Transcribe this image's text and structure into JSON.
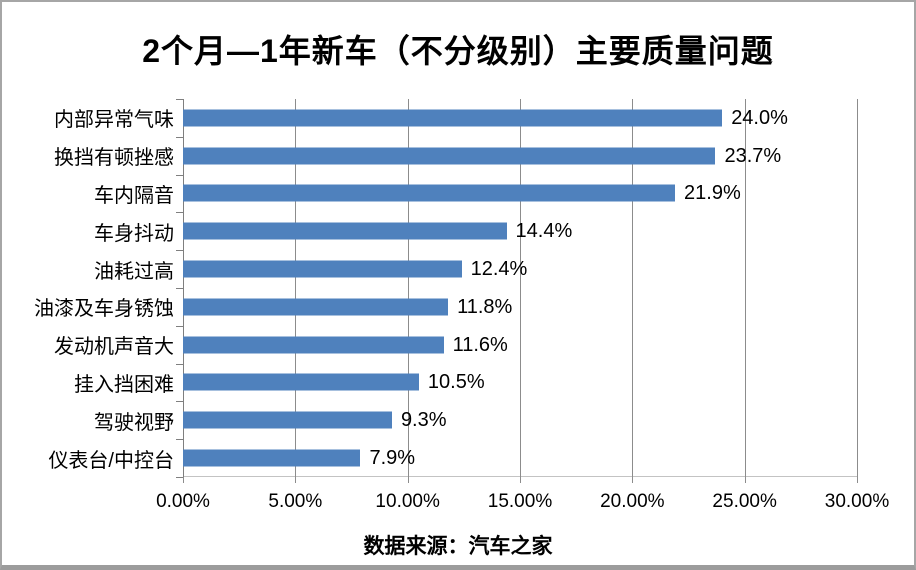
{
  "chart_data": {
    "type": "bar",
    "orientation": "horizontal",
    "title": "2个月—1年新车（不分级别）主要质量问题",
    "categories": [
      "内部异常气味",
      "换挡有顿挫感",
      "车内隔音",
      "车身抖动",
      "油耗过高",
      "油漆及车身锈蚀",
      "发动机声音大",
      "挂入挡困难",
      "驾驶视野",
      "仪表台/中控台"
    ],
    "values": [
      24.0,
      23.7,
      21.9,
      14.4,
      12.4,
      11.8,
      11.6,
      10.5,
      9.3,
      7.9
    ],
    "value_labels": [
      "24.0%",
      "23.7%",
      "21.9%",
      "14.4%",
      "12.4%",
      "11.8%",
      "11.6%",
      "10.5%",
      "9.3%",
      "7.9%"
    ],
    "xlabel": "",
    "ylabel": "",
    "xlim": [
      0,
      30
    ],
    "x_ticks": [
      0,
      5,
      10,
      15,
      20,
      25,
      30
    ],
    "x_tick_labels": [
      "0.00%",
      "5.00%",
      "10.00%",
      "15.00%",
      "20.00%",
      "25.00%",
      "30.00%"
    ],
    "grid": true,
    "legend": false,
    "bar_color": "#4F81BD",
    "gridline_color": "#8c8c8c",
    "source_note": "数据来源：汽车之家"
  }
}
